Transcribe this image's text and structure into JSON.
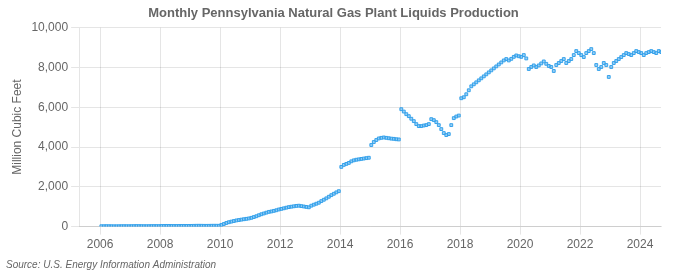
{
  "chart_data": {
    "type": "scatter",
    "title": "Monthly Pennsylvania Natural Gas Plant Liquids Production",
    "ylabel": "Million Cubic Feet",
    "annotation": "Source: U.S. Energy Information Administration",
    "marker": "square",
    "grid": true,
    "xlim": [
      2005.3,
      2024.7
    ],
    "xticks": [
      2006,
      2008,
      2010,
      2012,
      2014,
      2016,
      2018,
      2020,
      2022,
      2024
    ],
    "ylim": [
      0,
      10000
    ],
    "yticks": [
      0,
      {
        "value": 2000,
        "label": "2,000"
      },
      {
        "value": 4000,
        "label": "4,000"
      },
      {
        "value": 6000,
        "label": "6,000"
      },
      {
        "value": 8000,
        "label": "8,000"
      },
      {
        "value": 10000,
        "label": "10,000"
      }
    ],
    "x": [
      2006.041666666667,
      2006.125,
      2006.208333333333,
      2006.291666666667,
      2006.375,
      2006.458333333333,
      2006.541666666667,
      2006.625,
      2006.708333333333,
      2006.791666666667,
      2006.875,
      2006.958333333333,
      2007.041666666667,
      2007.125,
      2007.208333333333,
      2007.291666666667,
      2007.375,
      2007.458333333333,
      2007.541666666667,
      2007.625,
      2007.708333333333,
      2007.791666666667,
      2007.875,
      2007.958333333333,
      2008.041666666667,
      2008.125,
      2008.208333333333,
      2008.291666666667,
      2008.375,
      2008.458333333333,
      2008.541666666667,
      2008.625,
      2008.708333333333,
      2008.791666666667,
      2008.875,
      2008.958333333333,
      2009.041666666667,
      2009.125,
      2009.208333333333,
      2009.291666666667,
      2009.375,
      2009.458333333333,
      2009.541666666667,
      2009.625,
      2009.708333333333,
      2009.791666666667,
      2009.875,
      2009.958333333333,
      2010.041666666667,
      2010.125,
      2010.208333333333,
      2010.291666666667,
      2010.375,
      2010.458333333333,
      2010.541666666667,
      2010.625,
      2010.708333333333,
      2010.791666666667,
      2010.875,
      2010.958333333333,
      2011.041666666667,
      2011.125,
      2011.208333333333,
      2011.291666666667,
      2011.375,
      2011.458333333333,
      2011.541666666667,
      2011.625,
      2011.708333333333,
      2011.791666666667,
      2011.875,
      2011.958333333333,
      2012.041666666667,
      2012.125,
      2012.208333333333,
      2012.291666666667,
      2012.375,
      2012.458333333333,
      2012.541666666667,
      2012.625,
      2012.708333333333,
      2012.791666666667,
      2012.875,
      2012.958333333333,
      2013.041666666667,
      2013.125,
      2013.208333333333,
      2013.291666666667,
      2013.375,
      2013.458333333333,
      2013.541666666667,
      2013.625,
      2013.708333333333,
      2013.791666666667,
      2013.875,
      2013.958333333333,
      2014.041666666667,
      2014.125,
      2014.208333333333,
      2014.291666666667,
      2014.375,
      2014.458333333333,
      2014.541666666667,
      2014.625,
      2014.708333333333,
      2014.791666666667,
      2014.875,
      2014.958333333333,
      2015.041666666667,
      2015.125,
      2015.208333333333,
      2015.291666666667,
      2015.375,
      2015.458333333333,
      2015.541666666667,
      2015.625,
      2015.708333333333,
      2015.791666666667,
      2015.875,
      2015.958333333333,
      2016.041666666667,
      2016.125,
      2016.208333333333,
      2016.291666666667,
      2016.375,
      2016.458333333333,
      2016.541666666667,
      2016.625,
      2016.708333333333,
      2016.791666666667,
      2016.875,
      2016.958333333333,
      2017.041666666667,
      2017.125,
      2017.208333333333,
      2017.291666666667,
      2017.375,
      2017.458333333333,
      2017.541666666667,
      2017.625,
      2017.708333333333,
      2017.791666666667,
      2017.875,
      2017.958333333333,
      2018.041666666667,
      2018.125,
      2018.208333333333,
      2018.291666666667,
      2018.375,
      2018.458333333333,
      2018.541666666667,
      2018.625,
      2018.708333333333,
      2018.791666666667,
      2018.875,
      2018.958333333333,
      2019.041666666667,
      2019.125,
      2019.208333333333,
      2019.291666666667,
      2019.375,
      2019.458333333333,
      2019.541666666667,
      2019.625,
      2019.708333333333,
      2019.791666666667,
      2019.875,
      2019.958333333333,
      2020.041666666667,
      2020.125,
      2020.208333333333,
      2020.291666666667,
      2020.375,
      2020.458333333333,
      2020.541666666667,
      2020.625,
      2020.708333333333,
      2020.791666666667,
      2020.875,
      2020.958333333333,
      2021.041666666667,
      2021.125,
      2021.208333333333,
      2021.291666666667,
      2021.375,
      2021.458333333333,
      2021.541666666667,
      2021.625,
      2021.708333333333,
      2021.791666666667,
      2021.875,
      2021.958333333333,
      2022.041666666667,
      2022.125,
      2022.208333333333,
      2022.291666666667,
      2022.375,
      2022.458333333333,
      2022.541666666667,
      2022.625,
      2022.708333333333,
      2022.791666666667,
      2022.875,
      2022.958333333333,
      2023.041666666667,
      2023.125,
      2023.208333333333,
      2023.291666666667,
      2023.375,
      2023.458333333333,
      2023.541666666667,
      2023.625,
      2023.708333333333,
      2023.791666666667,
      2023.875,
      2023.958333333333,
      2024.041666666667,
      2024.125,
      2024.208333333333,
      2024.291666666667,
      2024.375,
      2024.458333333333,
      2024.541666666667,
      2024.625,
      2024.708333333333
    ],
    "values": [
      18,
      20,
      22,
      20,
      18,
      17,
      16,
      18,
      20,
      22,
      21,
      20,
      22,
      25,
      27,
      25,
      23,
      22,
      21,
      23,
      25,
      27,
      26,
      25,
      30,
      33,
      35,
      33,
      31,
      30,
      29,
      31,
      33,
      35,
      34,
      33,
      35,
      38,
      40,
      42,
      40,
      38,
      37,
      39,
      41,
      43,
      42,
      41,
      80,
      130,
      180,
      220,
      250,
      280,
      310,
      330,
      350,
      370,
      390,
      410,
      440,
      480,
      520,
      570,
      620,
      660,
      700,
      740,
      760,
      790,
      820,
      860,
      890,
      920,
      950,
      980,
      1000,
      1020,
      1040,
      1050,
      1030,
      1010,
      990,
      970,
      1050,
      1100,
      1150,
      1200,
      1280,
      1350,
      1420,
      1500,
      1580,
      1650,
      1720,
      1780,
      3000,
      3100,
      3150,
      3200,
      3280,
      3330,
      3360,
      3380,
      3400,
      3420,
      3440,
      3460,
      4100,
      4250,
      4350,
      4430,
      4460,
      4480,
      4460,
      4440,
      4420,
      4410,
      4390,
      4380,
      5900,
      5780,
      5650,
      5550,
      5420,
      5300,
      5150,
      5050,
      5050,
      5080,
      5100,
      5150,
      5400,
      5350,
      5250,
      5100,
      4900,
      4700,
      4600,
      4650,
      5100,
      5450,
      5530,
      5580,
      6450,
      6500,
      6650,
      6850,
      7050,
      7150,
      7250,
      7350,
      7450,
      7550,
      7650,
      7750,
      7850,
      7950,
      8050,
      8150,
      8250,
      8350,
      8420,
      8350,
      8430,
      8530,
      8600,
      8560,
      8530,
      8620,
      8450,
      7920,
      8020,
      8100,
      8020,
      8100,
      8200,
      8300,
      8180,
      8070,
      8020,
      7820,
      8120,
      8220,
      8320,
      8420,
      8220,
      8320,
      8420,
      8620,
      8820,
      8720,
      8620,
      8520,
      8720,
      8820,
      8920,
      8720,
      8120,
      7920,
      8020,
      8220,
      8120,
      7520,
      8020,
      8220,
      8320,
      8420,
      8520,
      8620,
      8720,
      8670,
      8620,
      8720,
      8820,
      8770,
      8720,
      8620,
      8720,
      8770,
      8820,
      8770,
      8720,
      8820,
      8770
    ]
  }
}
